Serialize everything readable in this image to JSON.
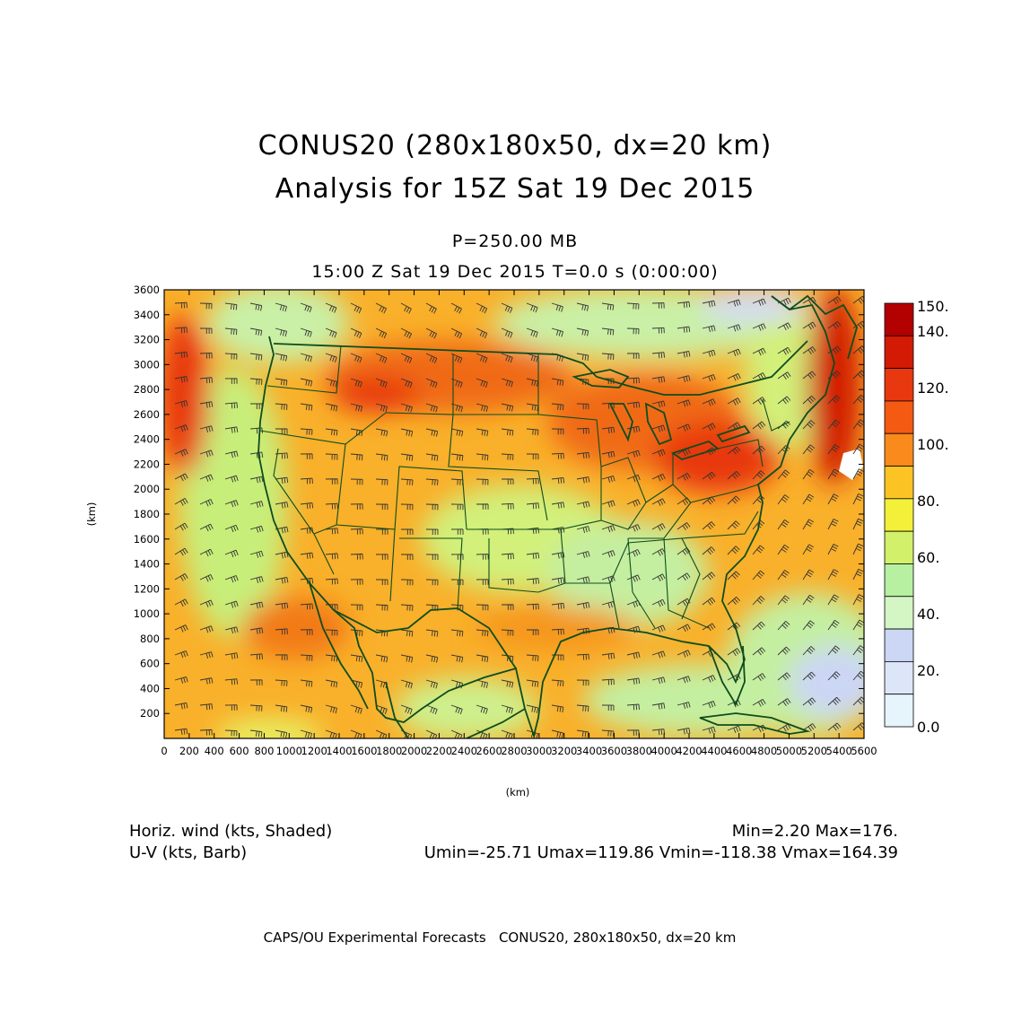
{
  "header": {
    "title_line1": "CONUS20 (280x180x50, dx=20 km)",
    "title_line2": "Analysis for 15Z Sat 19 Dec 2015",
    "level": "P=250.00 MB",
    "time_line": "15:00 Z Sat 19 Dec 2015    T=0.0 s (0:00:00)"
  },
  "axes": {
    "x_label": "(km)",
    "y_label": "(km)",
    "x_ticks": [
      "0",
      "200",
      "400",
      "600",
      "800",
      "1000",
      "1200",
      "1400",
      "1600",
      "1800",
      "2000",
      "2200",
      "2400",
      "2600",
      "2800",
      "3000",
      "3200",
      "3400",
      "3600",
      "3800",
      "4000",
      "4200",
      "4400",
      "4600",
      "4800",
      "5000",
      "5200",
      "5400",
      "5600"
    ],
    "y_ticks": [
      "200",
      "400",
      "600",
      "800",
      "1000",
      "1200",
      "1400",
      "1600",
      "1800",
      "2000",
      "2200",
      "2400",
      "2600",
      "2800",
      "3000",
      "3200",
      "3400",
      "3600"
    ]
  },
  "colorbar": {
    "labels": [
      "150.",
      "140.",
      "120.",
      "100.",
      "80.",
      "60.",
      "40.",
      "20.",
      "0.0"
    ],
    "colors": [
      "#b30000",
      "#d21a05",
      "#e8380f",
      "#f55a12",
      "#f98a1c",
      "#fbc424",
      "#f3f03a",
      "#d2f06a",
      "#b6f0a0",
      "#d4f5c4",
      "#ccd6f5",
      "#dde6f8",
      "#e6f4fb"
    ]
  },
  "legend": {
    "shaded_field": "Horiz. wind (kts, Shaded)",
    "barb_field": "U-V (kts, Barb)",
    "min_max": "Min=2.20 Max=176.",
    "uv_stats": "Umin=-25.71 Umax=119.86 Vmin=-118.38 Vmax=164.39"
  },
  "footer": {
    "credit": "CAPS/OU Experimental Forecasts   CONUS20, 280x180x50, dx=20 km"
  }
}
